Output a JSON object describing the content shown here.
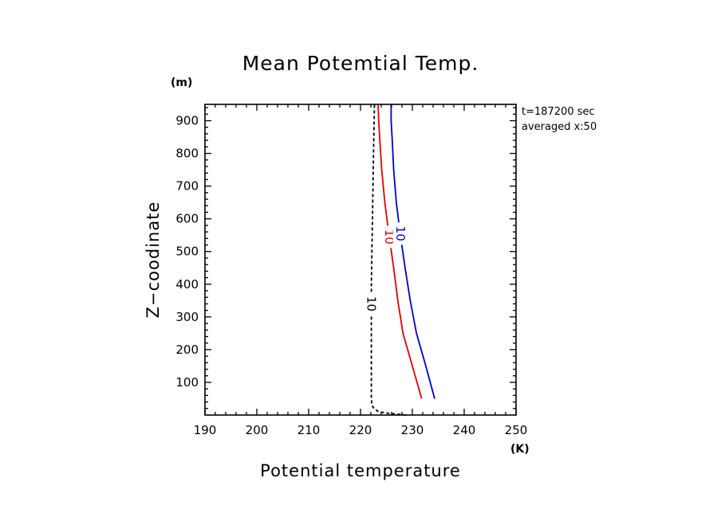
{
  "chart_data": {
    "type": "line",
    "title": "Mean Potemtial Temp.",
    "xlabel": "Potential temperature",
    "ylabel": "Z−coodinate",
    "xunit": "(K)",
    "yunit": "(m)",
    "xlim": [
      190,
      250
    ],
    "ylim": [
      0,
      950
    ],
    "xticks": [
      190,
      200,
      210,
      220,
      230,
      240,
      250
    ],
    "yticks": [
      100,
      200,
      300,
      400,
      500,
      600,
      700,
      800,
      900
    ],
    "annotations": [
      "t=187200 sec",
      "averaged  x:50"
    ],
    "grid": false,
    "series": [
      {
        "color": "#000000",
        "dash": true,
        "contour_label": "10",
        "label_at": 340,
        "x": [
          228.8,
          225.5,
          223.5,
          222.6,
          222.2,
          222.1,
          222.1,
          222.1,
          222.1,
          222.1,
          222.2,
          222.3,
          222.5,
          222.7
        ],
        "y": [
          0,
          5,
          10,
          20,
          30,
          50,
          100,
          200,
          300,
          400,
          500,
          600,
          800,
          950
        ]
      },
      {
        "color": "#e00000",
        "dash": false,
        "contour_label": "10",
        "label_at": 545,
        "x": [
          231.8,
          230.0,
          228.2,
          227.2,
          226.4,
          225.5,
          224.7,
          224.1,
          223.7,
          223.5,
          223.4
        ],
        "y": [
          50,
          150,
          250,
          350,
          450,
          550,
          650,
          750,
          850,
          900,
          950
        ]
      },
      {
        "color": "#0000cc",
        "dash": false,
        "contour_label": "10",
        "label_at": 555,
        "x": [
          234.3,
          232.6,
          230.8,
          229.6,
          228.6,
          227.7,
          226.9,
          226.4,
          226.1,
          225.9,
          225.9
        ],
        "y": [
          50,
          150,
          250,
          350,
          450,
          550,
          650,
          750,
          850,
          900,
          950
        ]
      }
    ]
  }
}
